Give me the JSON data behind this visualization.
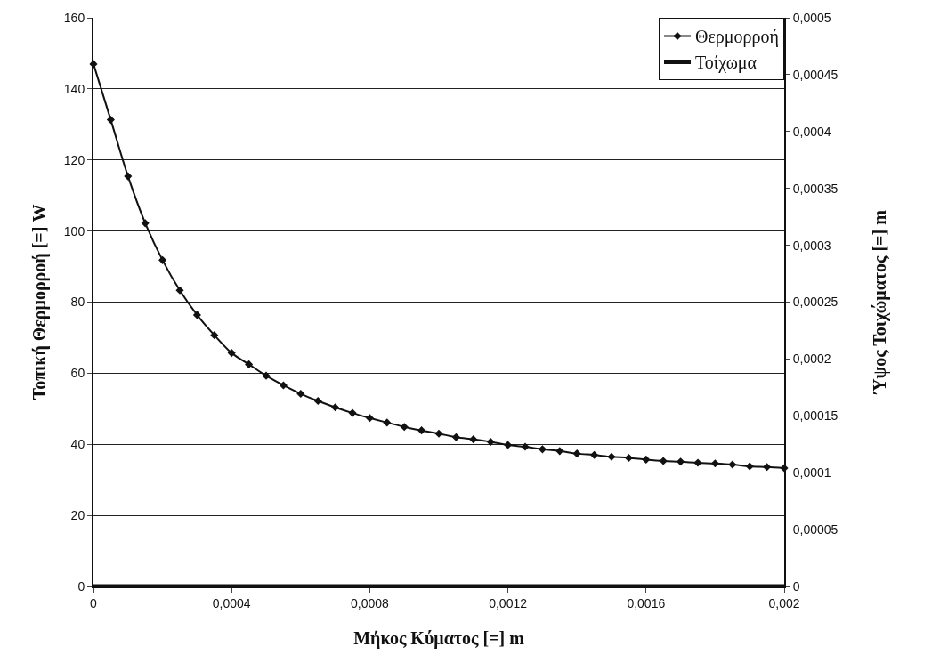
{
  "chart_data": {
    "type": "line",
    "xlabel": "Μήκος Κύματος [=] m",
    "ylabel": "Τοπική Θερμορροή [=] W",
    "y2label": "Ύψος Τοιχώματος [=] m",
    "x": [
      0,
      5e-05,
      0.0001,
      0.00015,
      0.0002,
      0.00025,
      0.0003,
      0.00035,
      0.0004,
      0.00045,
      0.0005,
      0.00055,
      0.0006,
      0.00065,
      0.0007,
      0.00075,
      0.0008,
      0.00085,
      0.0009,
      0.00095,
      0.001,
      0.00105,
      0.0011,
      0.00115,
      0.0012,
      0.00125,
      0.0013,
      0.00135,
      0.0014,
      0.00145,
      0.0015,
      0.00155,
      0.0016,
      0.00165,
      0.0017,
      0.00175,
      0.0018,
      0.00185,
      0.0019,
      0.00195,
      0.002
    ],
    "series": [
      {
        "name": "Θερμορροή",
        "color": "#111111",
        "marker": "diamond",
        "values": [
          147,
          131.3,
          115.4,
          102.2,
          91.8,
          83.3,
          76.4,
          70.7,
          65.7,
          62.5,
          59.3,
          56.6,
          54.2,
          52.2,
          50.4,
          48.8,
          47.4,
          46.1,
          44.9,
          43.9,
          43.0,
          42.0,
          41.4,
          40.7,
          39.8,
          39.3,
          38.6,
          38.1,
          37.4,
          37.0,
          36.5,
          36.2,
          35.7,
          35.3,
          35.1,
          34.8,
          34.6,
          34.3,
          33.8,
          33.6,
          33.3
        ]
      },
      {
        "name": "Τοίχωμα",
        "color": "#111111",
        "marker": "none",
        "axis": "y2",
        "x": [
          0,
          0.002
        ],
        "values": [
          0,
          0
        ]
      }
    ],
    "xlim": [
      0,
      0.002
    ],
    "xticks": [
      0,
      {
        "value": 0.0004,
        "label": "0,0004"
      },
      {
        "value": 0.0008,
        "label": "0,0008"
      },
      {
        "value": 0.0012,
        "label": "0,0012"
      },
      {
        "value": 0.0016,
        "label": "0,0016"
      },
      {
        "value": 0.002,
        "label": "0,002"
      }
    ],
    "ylim": [
      0,
      160
    ],
    "yticks": [
      0,
      20,
      40,
      60,
      80,
      100,
      120,
      140,
      160
    ],
    "y2lim": [
      0,
      0.0005
    ],
    "y2ticks": [
      0,
      {
        "value": 5e-05,
        "label": "0,00005"
      },
      {
        "value": 0.0001,
        "label": "0,0001"
      },
      {
        "value": 0.00015,
        "label": "0,00015"
      },
      {
        "value": 0.0002,
        "label": "0,0002"
      },
      {
        "value": 0.00025,
        "label": "0,00025"
      },
      {
        "value": 0.0003,
        "label": "0,0003"
      },
      {
        "value": 0.00035,
        "label": "0,00035"
      },
      {
        "value": 0.0004,
        "label": "0,0004"
      },
      {
        "value": 0.00045,
        "label": "0,00045"
      },
      {
        "value": 0.0005,
        "label": "0,0005"
      }
    ],
    "grid": "y",
    "legend": "top right"
  }
}
